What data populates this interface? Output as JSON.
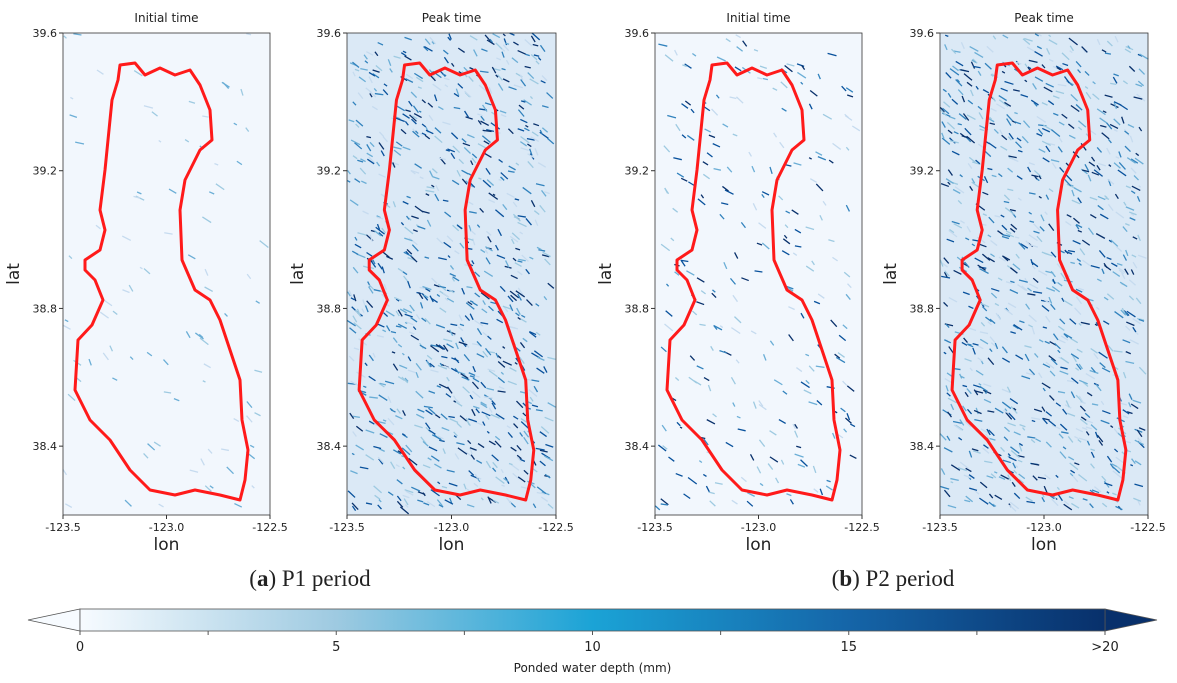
{
  "chart_data": [
    {
      "type": "map",
      "title": "Initial time",
      "x_label": "lon",
      "y_label": "lat",
      "xlim": [
        -123.5,
        -122.5
      ],
      "ylim": [
        38.2,
        39.6
      ],
      "xticks": [
        -123.5,
        {
          "value": -123,
          "label": "-123.0"
        },
        -122.5
      ],
      "yticks": [
        38.4,
        38.8,
        39.2,
        39.6
      ],
      "outline_color": "#ff1a1a"
    },
    {
      "type": "map",
      "title": "Peak time",
      "x_label": "lon",
      "y_label": "lat",
      "xlim": [
        -123.5,
        -122.5
      ],
      "ylim": [
        38.2,
        39.6
      ],
      "xticks": [
        -123.5,
        {
          "value": -123,
          "label": "-123.0"
        },
        -122.5
      ],
      "yticks": [
        38.4,
        38.8,
        39.2,
        39.6
      ],
      "outline_color": "#ff1a1a"
    },
    {
      "type": "map",
      "title": "Initial time",
      "x_label": "lon",
      "y_label": "lat",
      "xlim": [
        -123.5,
        -122.5
      ],
      "ylim": [
        38.2,
        39.6
      ],
      "xticks": [
        -123.5,
        {
          "value": -123,
          "label": "-123.0"
        },
        -122.5
      ],
      "yticks": [
        38.4,
        38.8,
        39.2,
        39.6
      ],
      "outline_color": "#ff1a1a"
    },
    {
      "type": "map",
      "title": "Peak time",
      "x_label": "lon",
      "y_label": "lat",
      "xlim": [
        -123.5,
        -122.5
      ],
      "ylim": [
        38.2,
        39.6
      ],
      "xticks": [
        -123.5,
        {
          "value": -123,
          "label": "-123.0"
        },
        -122.5
      ],
      "yticks": [
        38.4,
        38.8,
        39.2,
        39.6
      ],
      "outline_color": "#ff1a1a"
    }
  ],
  "captions": [
    {
      "parts": [
        "(",
        "a",
        ") P1 period"
      ]
    },
    {
      "parts": [
        "(",
        "b",
        ") P2 period"
      ]
    }
  ],
  "colorbar": {
    "label": "Ponded water depth (mm)",
    "lim": [
      0,
      20
    ],
    "ticks": [
      0,
      5,
      10,
      15,
      {
        "value": 20,
        "label": ">20"
      }
    ],
    "minor_ticks": [
      2.5,
      7.5,
      12.5,
      17.5
    ],
    "colors": [
      "#f7fbff",
      "#9ecae1",
      "#1ba3d6",
      "#1565a8",
      "#08306b"
    ]
  }
}
